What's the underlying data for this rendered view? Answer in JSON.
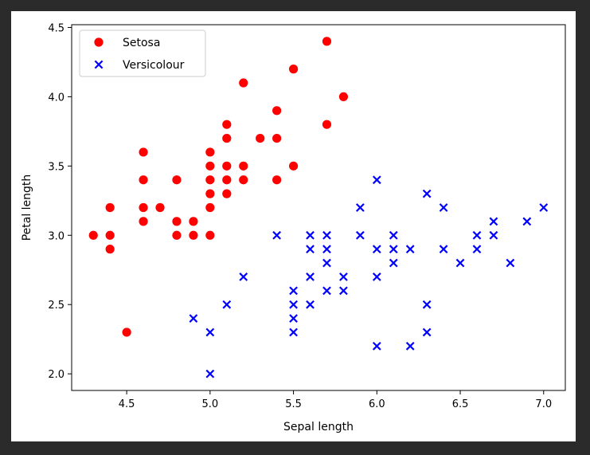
{
  "chart_data": {
    "type": "scatter",
    "title": "",
    "xlabel": "Sepal length",
    "ylabel": "Petal length",
    "xlim": [
      4.17,
      7.13
    ],
    "ylim": [
      1.88,
      4.52
    ],
    "xticks": [
      4.5,
      5.0,
      5.5,
      6.0,
      6.5,
      7.0
    ],
    "xtick_labels": [
      "4.5",
      "5.0",
      "5.5",
      "6.0",
      "6.5",
      "7.0"
    ],
    "yticks": [
      2.0,
      2.5,
      3.0,
      3.5,
      4.0,
      4.5
    ],
    "ytick_labels": [
      "2.0",
      "2.5",
      "3.0",
      "3.5",
      "4.0",
      "4.5"
    ],
    "grid": false,
    "legend_position": "upper-left",
    "series": [
      {
        "name": "Setosa",
        "marker": "circle",
        "color": "#ff0000",
        "points": [
          [
            4.3,
            3.0
          ],
          [
            4.4,
            2.9
          ],
          [
            4.4,
            3.0
          ],
          [
            4.4,
            3.2
          ],
          [
            4.5,
            2.3
          ],
          [
            4.6,
            3.1
          ],
          [
            4.6,
            3.2
          ],
          [
            4.6,
            3.4
          ],
          [
            4.6,
            3.6
          ],
          [
            4.7,
            3.2
          ],
          [
            4.8,
            3.0
          ],
          [
            4.8,
            3.1
          ],
          [
            4.8,
            3.4
          ],
          [
            4.9,
            3.0
          ],
          [
            4.9,
            3.1
          ],
          [
            5.0,
            3.0
          ],
          [
            5.0,
            3.2
          ],
          [
            5.0,
            3.3
          ],
          [
            5.0,
            3.4
          ],
          [
            5.0,
            3.5
          ],
          [
            5.0,
            3.6
          ],
          [
            5.1,
            3.3
          ],
          [
            5.1,
            3.4
          ],
          [
            5.1,
            3.5
          ],
          [
            5.1,
            3.7
          ],
          [
            5.1,
            3.8
          ],
          [
            5.2,
            3.4
          ],
          [
            5.2,
            3.5
          ],
          [
            5.2,
            4.1
          ],
          [
            5.3,
            3.7
          ],
          [
            5.4,
            3.4
          ],
          [
            5.4,
            3.7
          ],
          [
            5.4,
            3.9
          ],
          [
            5.5,
            3.5
          ],
          [
            5.5,
            4.2
          ],
          [
            5.7,
            3.8
          ],
          [
            5.7,
            4.4
          ],
          [
            5.8,
            4.0
          ]
        ]
      },
      {
        "name": "Versicolour",
        "marker": "x",
        "color": "#0000ff",
        "points": [
          [
            4.9,
            2.4
          ],
          [
            5.0,
            2.0
          ],
          [
            5.0,
            2.3
          ],
          [
            5.1,
            2.5
          ],
          [
            5.2,
            2.7
          ],
          [
            5.4,
            3.0
          ],
          [
            5.5,
            2.3
          ],
          [
            5.5,
            2.4
          ],
          [
            5.5,
            2.5
          ],
          [
            5.5,
            2.6
          ],
          [
            5.6,
            2.5
          ],
          [
            5.6,
            2.7
          ],
          [
            5.6,
            2.9
          ],
          [
            5.6,
            3.0
          ],
          [
            5.7,
            2.6
          ],
          [
            5.7,
            2.8
          ],
          [
            5.7,
            2.9
          ],
          [
            5.7,
            3.0
          ],
          [
            5.8,
            2.6
          ],
          [
            5.8,
            2.7
          ],
          [
            5.9,
            3.0
          ],
          [
            5.9,
            3.2
          ],
          [
            6.0,
            2.2
          ],
          [
            6.0,
            2.7
          ],
          [
            6.0,
            2.9
          ],
          [
            6.0,
            3.4
          ],
          [
            6.1,
            2.8
          ],
          [
            6.1,
            2.9
          ],
          [
            6.1,
            3.0
          ],
          [
            6.2,
            2.2
          ],
          [
            6.2,
            2.9
          ],
          [
            6.3,
            2.3
          ],
          [
            6.3,
            2.5
          ],
          [
            6.3,
            3.3
          ],
          [
            6.4,
            2.9
          ],
          [
            6.4,
            3.2
          ],
          [
            6.5,
            2.8
          ],
          [
            6.6,
            2.9
          ],
          [
            6.6,
            3.0
          ],
          [
            6.7,
            3.0
          ],
          [
            6.7,
            3.1
          ],
          [
            6.8,
            2.8
          ],
          [
            6.9,
            3.1
          ],
          [
            7.0,
            3.2
          ]
        ]
      }
    ]
  }
}
